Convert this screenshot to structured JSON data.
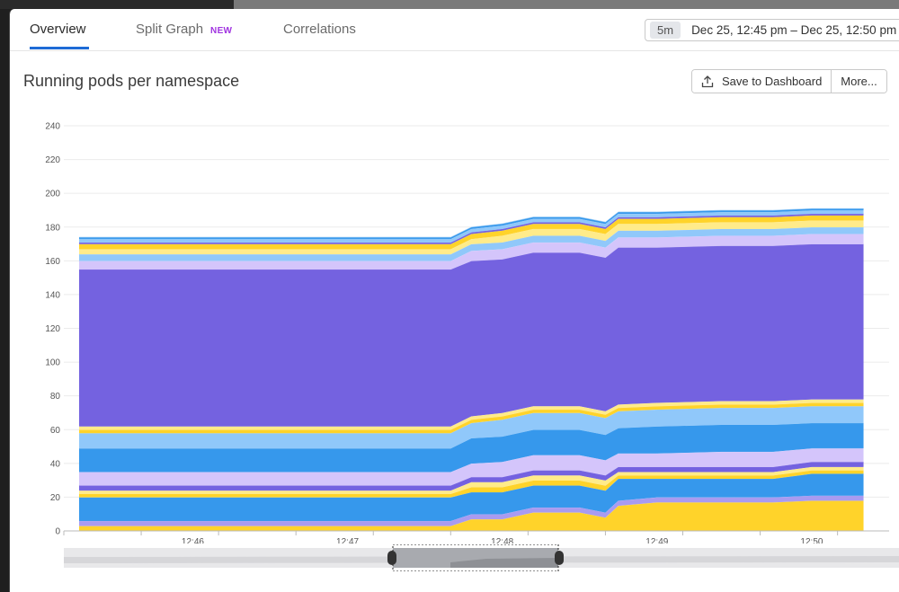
{
  "tabs": [
    {
      "label": "Overview",
      "active": true
    },
    {
      "label": "Split Graph",
      "badge": "NEW"
    },
    {
      "label": "Correlations"
    }
  ],
  "timepicker": {
    "chip": "5m",
    "range": "Dec 25, 12:45 pm – Dec 25, 12:50 pm"
  },
  "chart": {
    "title": "Running pods per namespace",
    "save_label": "Save to Dashboard",
    "more_label": "More..."
  },
  "icons": {
    "save": "upload-icon"
  },
  "chart_data": {
    "type": "area",
    "stacked": true,
    "ylim": [
      0,
      240
    ],
    "yticks": [
      0,
      20,
      40,
      60,
      80,
      100,
      120,
      140,
      160,
      180,
      200,
      220,
      240
    ],
    "x": [
      "12:45:16",
      "12:47:40",
      "12:47:48",
      "12:48:00",
      "12:48:12",
      "12:48:30",
      "12:48:40",
      "12:48:45",
      "12:49:00",
      "12:49:25",
      "12:49:30",
      "12:49:45",
      "12:50:00",
      "12:50:20"
    ],
    "xtick_labels": [
      "12:46",
      "12:47",
      "12:48",
      "12:49",
      "12:50"
    ],
    "grid": true,
    "series": [
      {
        "color": "#ffd32a",
        "values": [
          3,
          3,
          7,
          7,
          11,
          11,
          8,
          15,
          17,
          17,
          17,
          17,
          18,
          18
        ]
      },
      {
        "color": "#a99bf0",
        "values": [
          3,
          3,
          3,
          3,
          3,
          3,
          3,
          3,
          3,
          3,
          3,
          3,
          3,
          3
        ]
      },
      {
        "color": "#3698ec",
        "values": [
          14,
          14,
          13,
          13,
          13,
          13,
          13,
          13,
          11,
          11,
          11,
          11,
          13,
          13
        ]
      },
      {
        "color": "#ffd32a",
        "values": [
          2,
          2,
          3,
          3,
          3,
          3,
          3,
          2,
          2,
          2,
          2,
          2,
          2,
          2
        ]
      },
      {
        "color": "#ffeb8a",
        "values": [
          2,
          2,
          3,
          3,
          3,
          3,
          3,
          2,
          2,
          2,
          2,
          2,
          2,
          2
        ]
      },
      {
        "color": "#7462e0",
        "values": [
          3,
          3,
          3,
          3,
          3,
          3,
          3,
          3,
          3,
          3,
          3,
          3,
          3,
          3
        ]
      },
      {
        "color": "#d4c5fb",
        "values": [
          8,
          8,
          8,
          9,
          9,
          9,
          9,
          8,
          8,
          9,
          9,
          9,
          8,
          8
        ]
      },
      {
        "color": "#3698ec",
        "values": [
          14,
          14,
          15,
          15,
          15,
          15,
          15,
          15,
          16,
          16,
          16,
          16,
          15,
          15
        ]
      },
      {
        "color": "#90c8fa",
        "values": [
          9,
          9,
          9,
          10,
          10,
          10,
          10,
          10,
          10,
          10,
          10,
          10,
          10,
          10
        ]
      },
      {
        "color": "#ffd32a",
        "values": [
          2,
          2,
          2,
          2,
          2,
          2,
          2,
          2,
          2,
          2,
          2,
          2,
          2,
          2
        ]
      },
      {
        "color": "#ffeb8a",
        "values": [
          2,
          2,
          2,
          2,
          2,
          2,
          2,
          2,
          2,
          2,
          2,
          2,
          2,
          2
        ]
      },
      {
        "color": "#7462e0",
        "values": [
          93,
          93,
          92,
          91,
          91,
          91,
          91,
          93,
          92,
          92,
          92,
          92,
          92,
          92
        ]
      },
      {
        "color": "#d4c5fb",
        "values": [
          5,
          5,
          6,
          6,
          6,
          6,
          6,
          6,
          6,
          6,
          6,
          6,
          6,
          6
        ]
      },
      {
        "color": "#90c8fa",
        "values": [
          4,
          4,
          4,
          4,
          4,
          4,
          4,
          4,
          4,
          4,
          4,
          4,
          4,
          4
        ]
      },
      {
        "color": "#ffeb8a",
        "values": [
          3,
          3,
          3,
          4,
          4,
          4,
          4,
          4,
          4,
          4,
          4,
          4,
          4,
          4
        ]
      },
      {
        "color": "#ffd32a",
        "values": [
          3,
          3,
          3,
          3,
          3,
          3,
          3,
          3,
          3,
          3,
          3,
          3,
          3,
          3
        ]
      },
      {
        "color": "#7462e0",
        "values": [
          1,
          1,
          1,
          1,
          1,
          1,
          1,
          1,
          1,
          1,
          1,
          1,
          1,
          1
        ]
      },
      {
        "color": "#90c8fa",
        "values": [
          2,
          2,
          2,
          2,
          2,
          2,
          2,
          2,
          2,
          2,
          2,
          2,
          2,
          2
        ]
      },
      {
        "color": "#3698ec",
        "values": [
          1,
          1,
          1,
          1,
          1,
          1,
          1,
          1,
          1,
          1,
          1,
          1,
          1,
          1
        ]
      }
    ]
  }
}
